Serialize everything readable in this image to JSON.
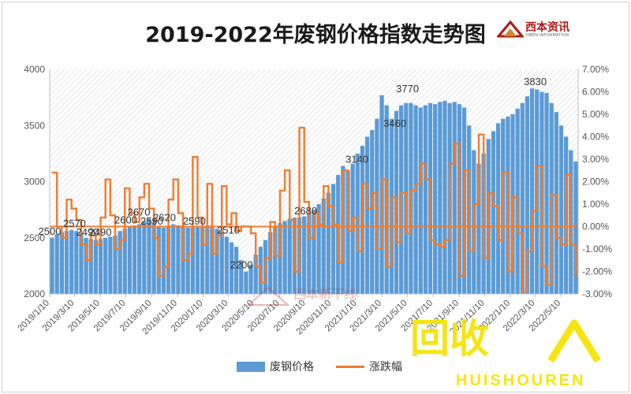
{
  "title": "2019-2022年废钢价格指数走势图",
  "logo": {
    "name": "西本资讯",
    "sub": "XIBEN INFORMATION"
  },
  "watermarks": {
    "center": "西本新干线",
    "corner_big": "回收",
    "corner_small": "HUISHOUREN"
  },
  "colors": {
    "bar": "#5b9bd5",
    "line": "#ed7d31",
    "hatch": "#c9c9c9"
  },
  "legend": [
    {
      "label": "废钢价格",
      "kind": "bar"
    },
    {
      "label": "涨跌幅",
      "kind": "line"
    }
  ],
  "chart_data": {
    "type": "bar+line",
    "title": "2019-2022年废钢价格指数走势图",
    "xlabel": "",
    "ylabel": "",
    "ylim": [
      2000,
      4000
    ],
    "y2lim": [
      -3.0,
      7.0
    ],
    "y_ticks": [
      "2000",
      "2500",
      "3000",
      "3500",
      "4000"
    ],
    "y2_ticks": [
      "-3.00%",
      "-2.00%",
      "-1.00%",
      "0.00%",
      "1.00%",
      "2.00%",
      "3.00%",
      "4.00%",
      "5.00%",
      "6.00%",
      "7.00%"
    ],
    "x_ticks": [
      "2019/1/10",
      "2019/3/10",
      "2019/5/10",
      "2019/7/10",
      "2019/9/10",
      "2019/11/10",
      "2020/1/10",
      "2020/3/10",
      "2020/5/10",
      "2020/7/10",
      "2020/9/10",
      "2020/11/10",
      "2021/1/10",
      "2021/3/10",
      "2021/5/10",
      "2021/7/10",
      "2021/9/10",
      "2021/11/10",
      "2022/1/10",
      "2022/3/10",
      "2022/5/10"
    ],
    "data_labels": [
      {
        "date": "2019/1/10",
        "value": 2500
      },
      {
        "date": "2019/3/10",
        "value": 2570
      },
      {
        "date": "2019/4/10",
        "value": 2490
      },
      {
        "date": "2019/5/10",
        "value": 2490
      },
      {
        "date": "2019/7/10",
        "value": 2600
      },
      {
        "date": "2019/8/10",
        "value": 2670
      },
      {
        "date": "2019/9/10",
        "value": 2590
      },
      {
        "date": "2019/10/10",
        "value": 2620
      },
      {
        "date": "2019/12/20",
        "value": 2590
      },
      {
        "date": "2020/3/10",
        "value": 2510
      },
      {
        "date": "2020/4/10",
        "value": 2200
      },
      {
        "date": "2020/9/10",
        "value": 2680
      },
      {
        "date": "2021/1/10",
        "value": 3140
      },
      {
        "date": "2021/4/10",
        "value": 3460
      },
      {
        "date": "2021/5/10",
        "value": 3770
      },
      {
        "date": "2022/3/10",
        "value": 3830
      }
    ],
    "series": [
      {
        "name": "废钢价格",
        "type": "bar",
        "axis": "left",
        "x_start": "2019/1/10",
        "x_end": "2022/6/20",
        "values": [
          2500,
          2530,
          2550,
          2560,
          2570,
          2560,
          2540,
          2500,
          2490,
          2480,
          2490,
          2500,
          2510,
          2520,
          2560,
          2580,
          2600,
          2610,
          2620,
          2650,
          2670,
          2640,
          2600,
          2590,
          2600,
          2620,
          2610,
          2600,
          2590,
          2590,
          2600,
          2600,
          2610,
          2600,
          2580,
          2560,
          2510,
          2460,
          2420,
          2300,
          2200,
          2260,
          2350,
          2420,
          2480,
          2550,
          2600,
          2630,
          2650,
          2670,
          2680,
          2680,
          2690,
          2720,
          2750,
          2800,
          2850,
          2900,
          2980,
          3060,
          3140,
          3100,
          3160,
          3250,
          3320,
          3400,
          3460,
          3560,
          3770,
          3680,
          3560,
          3630,
          3680,
          3700,
          3700,
          3680,
          3660,
          3680,
          3700,
          3690,
          3710,
          3720,
          3700,
          3710,
          3690,
          3660,
          3500,
          3280,
          3160,
          3250,
          3380,
          3450,
          3520,
          3560,
          3580,
          3600,
          3650,
          3700,
          3760,
          3830,
          3820,
          3800,
          3790,
          3700,
          3620,
          3500,
          3400,
          3280,
          3180
        ]
      },
      {
        "name": "涨跌幅",
        "type": "line",
        "axis": "right",
        "unit": "%",
        "values": [
          2.4,
          0,
          -0.5,
          1.2,
          0.8,
          0.3,
          -0.8,
          -1.5,
          -0.4,
          -0.8,
          0.4,
          2.1,
          0.5,
          -1.0,
          -0.6,
          1.7,
          0.6,
          0.2,
          1.3,
          1.9,
          0.8,
          -0.5,
          -2.2,
          -1.8,
          1.2,
          2.1,
          0.6,
          -1.5,
          -1.2,
          3.1,
          0.4,
          -0.8,
          1.9,
          -1.2,
          -0.4,
          1.8,
          0.1,
          0.6,
          -0.2,
          0,
          0,
          -0.3,
          -1.8,
          -2.5,
          -1.4,
          0.2,
          -1.3,
          1.6,
          2.5,
          0.3,
          -2.0,
          4.4,
          1.1,
          -0.5,
          0.6,
          0.1,
          1.8,
          0.9,
          0.1,
          -1.6,
          2.5,
          -0.2,
          0.4,
          -1.1,
          1.9,
          0.8,
          1.5,
          -1.0,
          2.1,
          -1.8,
          1.3,
          -0.7,
          1.5,
          -0.3,
          1.6,
          1.9,
          2.8,
          2.1,
          -0.6,
          -0.8,
          -0.9,
          -0.6,
          2.8,
          3.7,
          -2.2,
          2.5,
          -1.1,
          1.0,
          4.1,
          -1.4,
          1.5,
          0.9,
          -0.6,
          2.4,
          -2.0,
          1.3,
          -0.3,
          -2.9,
          -1.1,
          0.7,
          2.7,
          -1.8,
          -2.6,
          1.4,
          -0.5,
          -0.8,
          2.3,
          -0.8,
          -2.2
        ]
      }
    ],
    "grid": false
  }
}
